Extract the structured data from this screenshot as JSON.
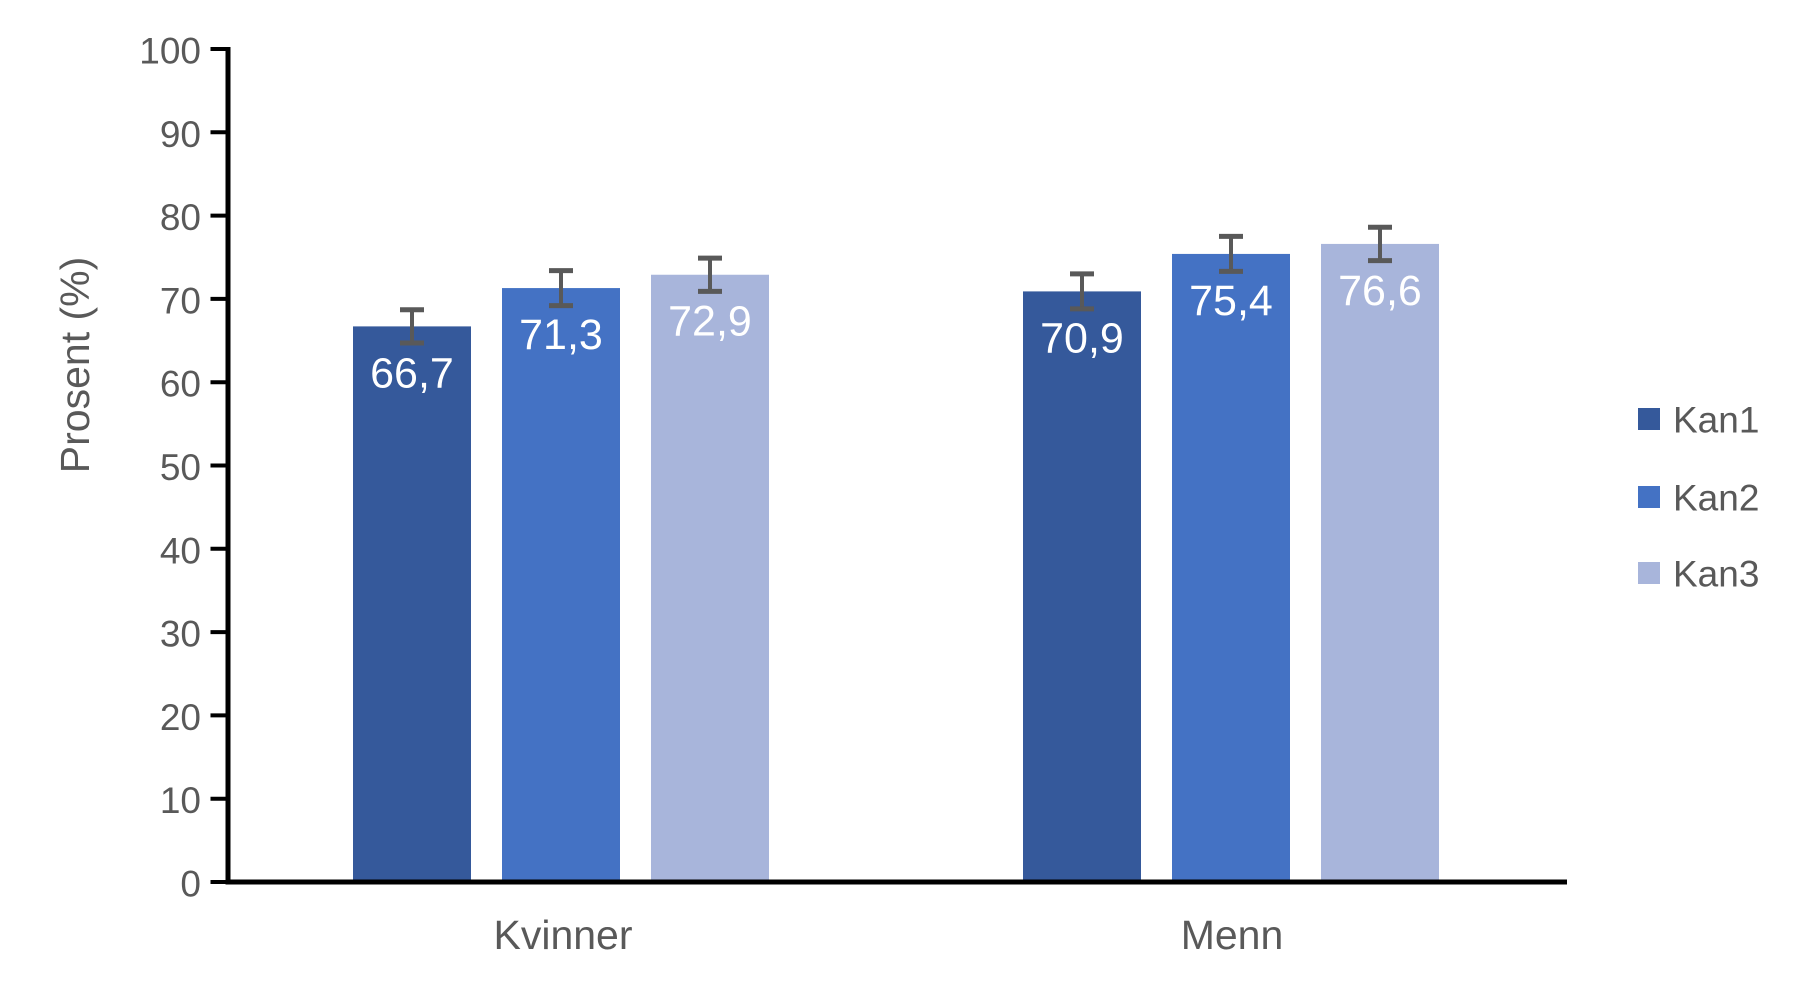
{
  "chart_data": {
    "type": "bar",
    "title": "",
    "xlabel": "",
    "ylabel": "Prosent (%)",
    "categories": [
      "Kvinner",
      "Menn"
    ],
    "series": [
      {
        "name": "Kan1",
        "color": "#35599B",
        "values": [
          66.7,
          70.9
        ],
        "errors": [
          2.0,
          2.1
        ]
      },
      {
        "name": "Kan2",
        "color": "#4472C4",
        "values": [
          71.3,
          75.4
        ],
        "errors": [
          2.1,
          2.1
        ]
      },
      {
        "name": "Kan3",
        "color": "#A8B5DB",
        "values": [
          72.9,
          76.6
        ],
        "errors": [
          2.0,
          2.0
        ]
      }
    ],
    "value_labels": {
      "Kvinner": [
        "66,7",
        "71,3",
        "72,9"
      ],
      "Menn": [
        "70,9",
        "75,4",
        "76,6"
      ]
    },
    "ylim": [
      0,
      100
    ],
    "ytick_step": 10,
    "ytick_labels": [
      "0",
      "10",
      "20",
      "30",
      "40",
      "50",
      "60",
      "70",
      "80",
      "90",
      "100"
    ],
    "decimal_separator": ",",
    "grid": false,
    "error_bars": true,
    "legend_position": "right",
    "colors": {
      "axis_line": "#000000",
      "tick_label": "#595959",
      "category_label": "#595959",
      "value_label": "#FFFFFF",
      "error_bar": "#595959",
      "legend_text": "#595959",
      "background": "#FFFFFF"
    }
  }
}
